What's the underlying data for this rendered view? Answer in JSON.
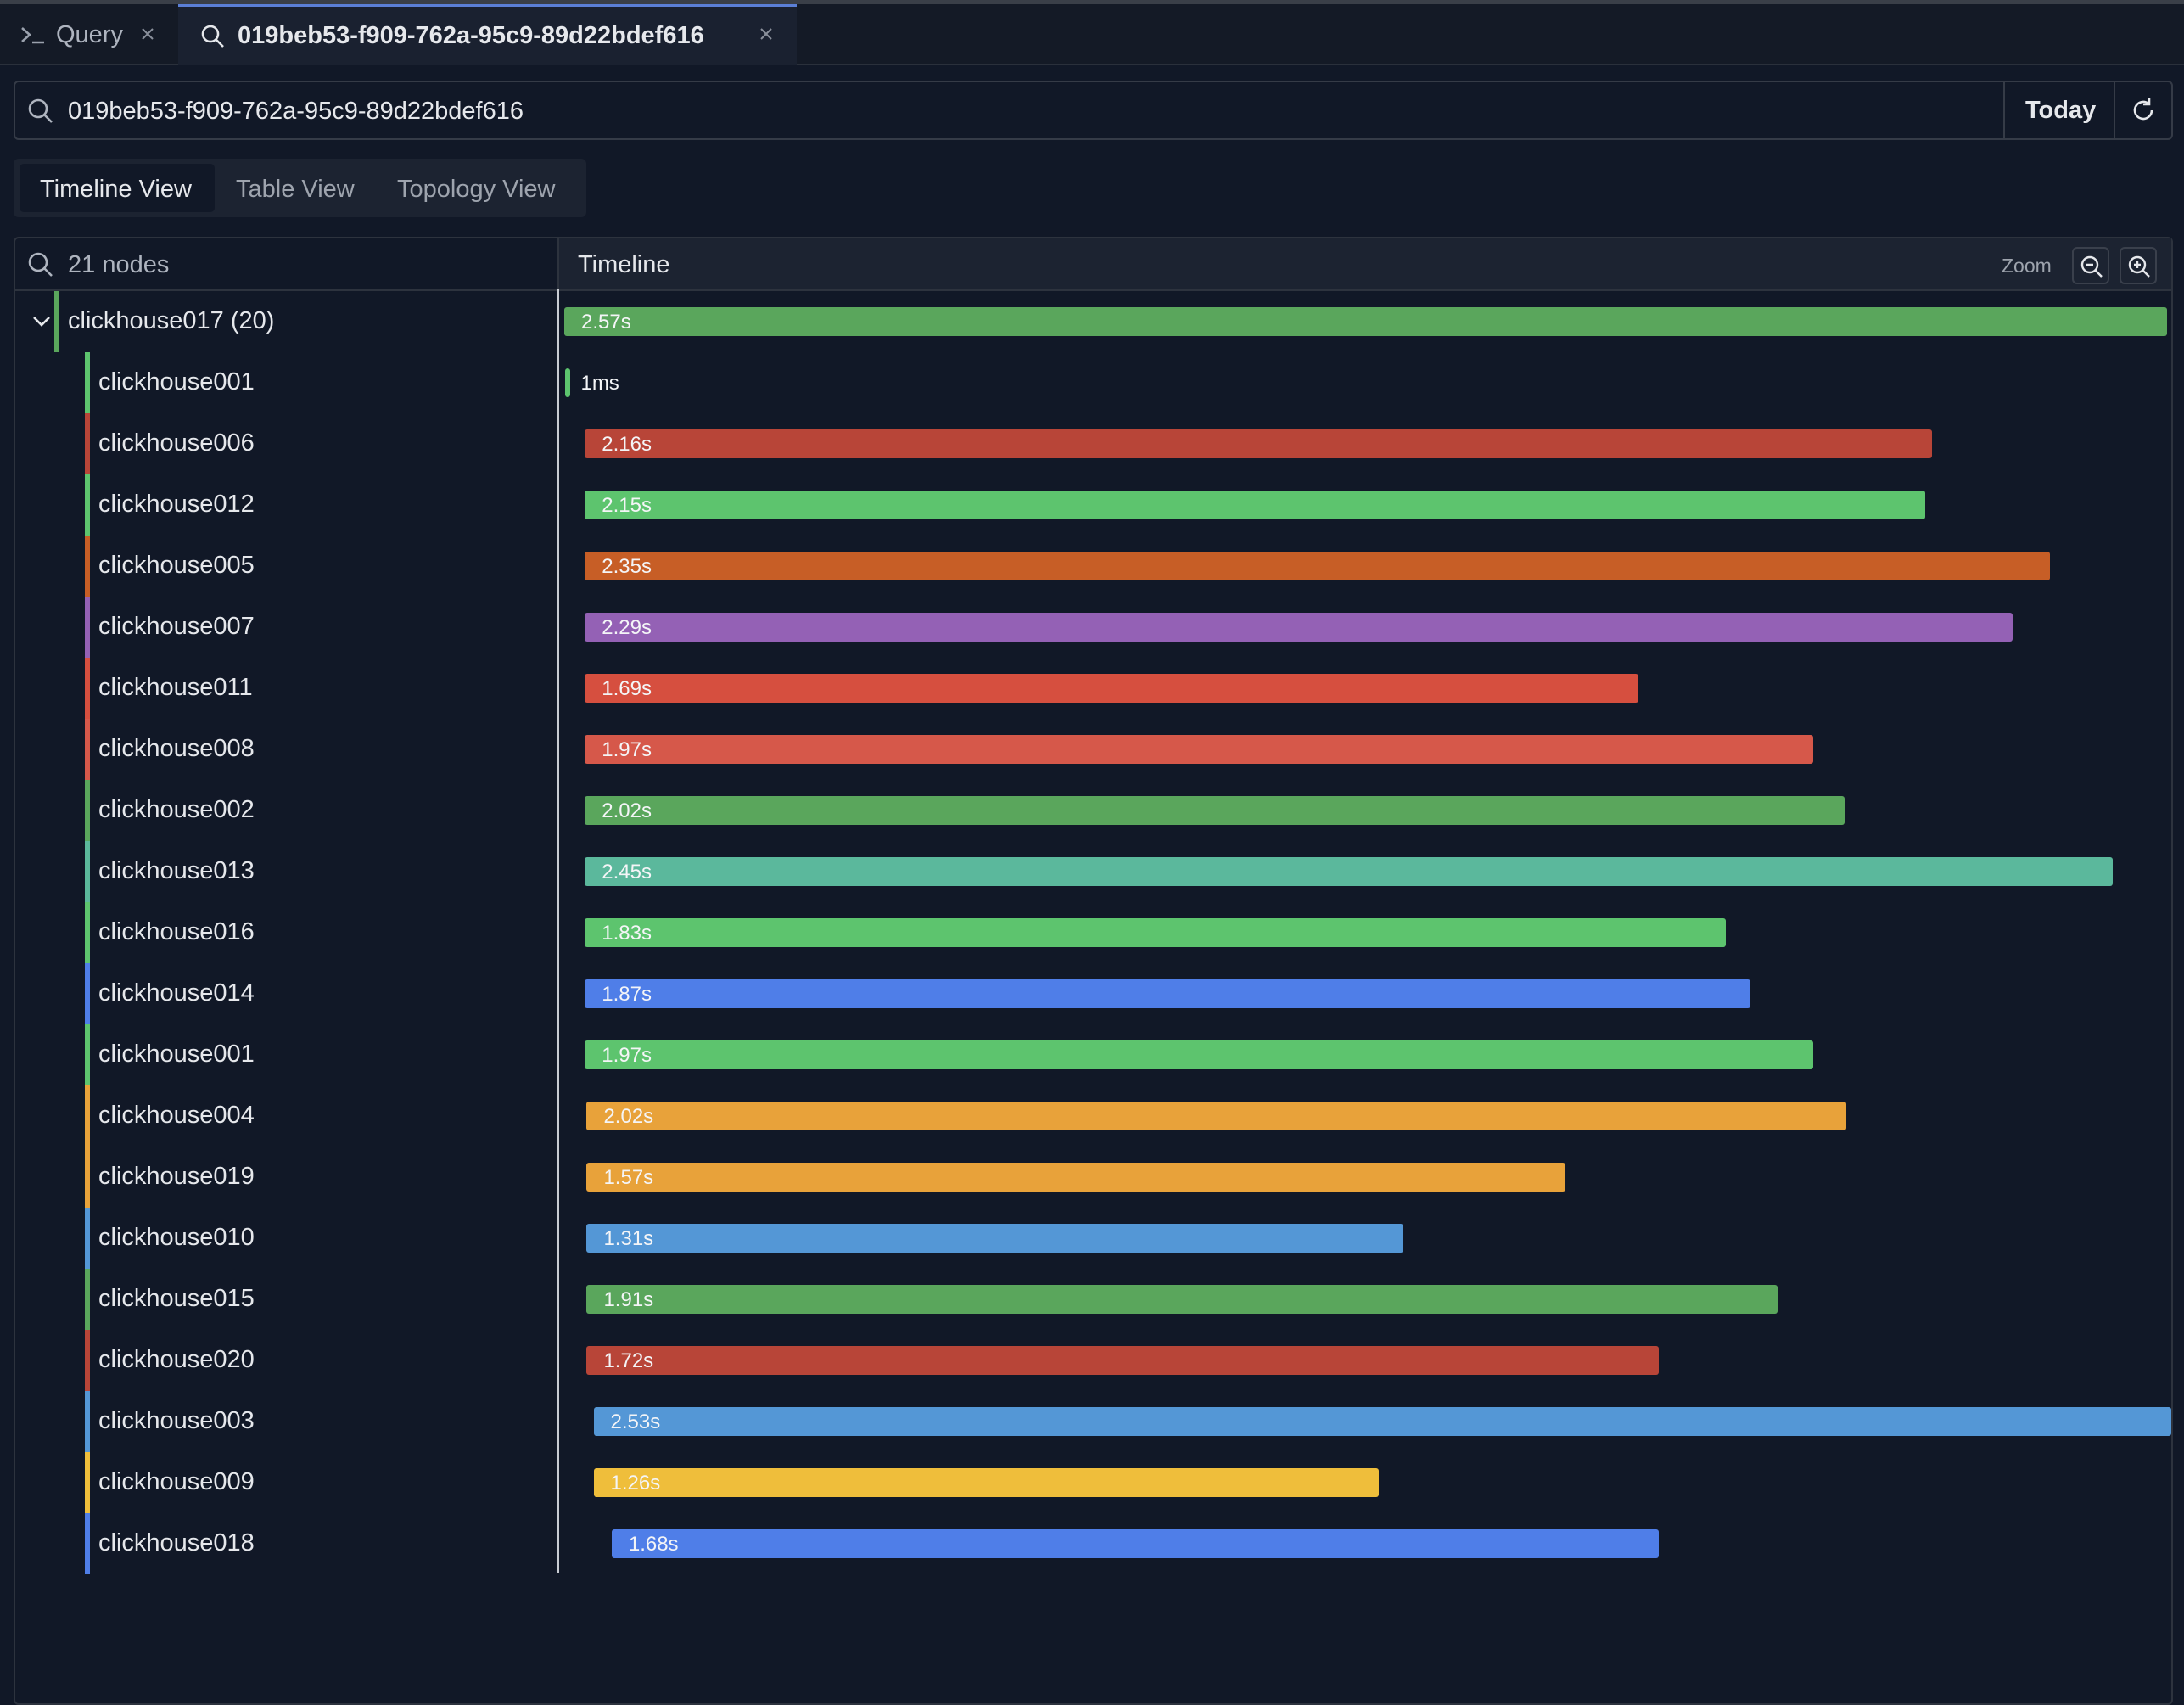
{
  "tabs": [
    "Query",
    "019beb53-f909-762a-95c9-89d22bdef616"
  ],
  "search": "019beb53-f909-762a-95c9-89d22bdef616",
  "date_button": "Today",
  "view_tabs": [
    "Timeline View",
    "Table View",
    "Topology View"
  ],
  "node_filter": "21 nodes",
  "timeline_header": "Timeline",
  "zoom_label": "Zoom",
  "timeline": {
    "xlim": [
      0,
      2.58
    ],
    "rows": [
      {
        "name": "clickhouse017 (20)",
        "color": "#5aa65c",
        "start": 0,
        "duration": 2.57,
        "duration_label": "2.57s"
      },
      {
        "name": "clickhouse001",
        "color": "#5dc46e",
        "start": 0.002,
        "duration": 0.001,
        "duration_label": "1ms"
      },
      {
        "name": "clickhouse006",
        "color": "#b84538",
        "start": 0.033,
        "duration": 2.16,
        "duration_label": "2.16s"
      },
      {
        "name": "clickhouse012",
        "color": "#5dc46e",
        "start": 0.033,
        "duration": 2.15,
        "duration_label": "2.15s"
      },
      {
        "name": "clickhouse005",
        "color": "#c75e26",
        "start": 0.033,
        "duration": 2.35,
        "duration_label": "2.35s"
      },
      {
        "name": "clickhouse007",
        "color": "#9461b5",
        "start": 0.033,
        "duration": 2.29,
        "duration_label": "2.29s"
      },
      {
        "name": "clickhouse011",
        "color": "#d64f3f",
        "start": 0.033,
        "duration": 1.69,
        "duration_label": "1.69s"
      },
      {
        "name": "clickhouse008",
        "color": "#d6584a",
        "start": 0.033,
        "duration": 1.97,
        "duration_label": "1.97s"
      },
      {
        "name": "clickhouse002",
        "color": "#5aa65c",
        "start": 0.033,
        "duration": 2.02,
        "duration_label": "2.02s"
      },
      {
        "name": "clickhouse013",
        "color": "#5bb89c",
        "start": 0.033,
        "duration": 2.45,
        "duration_label": "2.45s"
      },
      {
        "name": "clickhouse016",
        "color": "#5dc46e",
        "start": 0.033,
        "duration": 1.83,
        "duration_label": "1.83s"
      },
      {
        "name": "clickhouse014",
        "color": "#4f7ee8",
        "start": 0.033,
        "duration": 1.87,
        "duration_label": "1.87s"
      },
      {
        "name": "clickhouse001",
        "color": "#5dc46e",
        "start": 0.033,
        "duration": 1.97,
        "duration_label": "1.97s"
      },
      {
        "name": "clickhouse004",
        "color": "#e8a23a",
        "start": 0.036,
        "duration": 2.02,
        "duration_label": "2.02s"
      },
      {
        "name": "clickhouse019",
        "color": "#e8a23a",
        "start": 0.036,
        "duration": 1.57,
        "duration_label": "1.57s"
      },
      {
        "name": "clickhouse010",
        "color": "#5497d6",
        "start": 0.036,
        "duration": 1.31,
        "duration_label": "1.31s"
      },
      {
        "name": "clickhouse015",
        "color": "#5aa65c",
        "start": 0.036,
        "duration": 1.91,
        "duration_label": "1.91s"
      },
      {
        "name": "clickhouse020",
        "color": "#b84538",
        "start": 0.036,
        "duration": 1.72,
        "duration_label": "1.72s"
      },
      {
        "name": "clickhouse003",
        "color": "#5497d6",
        "start": 0.047,
        "duration": 2.53,
        "duration_label": "2.53s"
      },
      {
        "name": "clickhouse009",
        "color": "#efbe3b",
        "start": 0.047,
        "duration": 1.26,
        "duration_label": "1.26s"
      },
      {
        "name": "clickhouse018",
        "color": "#4f7ee8",
        "start": 0.076,
        "duration": 1.68,
        "duration_label": "1.68s"
      }
    ]
  }
}
